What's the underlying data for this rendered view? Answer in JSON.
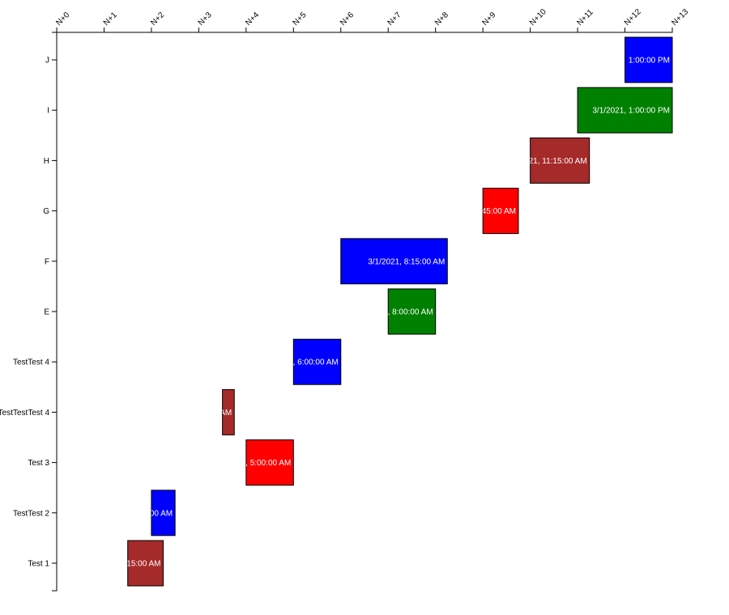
{
  "chart_data": {
    "type": "gantt",
    "x_ticks": [
      "N+0",
      "N+1",
      "N+2",
      "N+3",
      "N+4",
      "N+5",
      "N+6",
      "N+7",
      "N+8",
      "N+9",
      "N+10",
      "N+11",
      "N+12",
      "N+13"
    ],
    "xlim": [
      0,
      13
    ],
    "categories": [
      "Test 1",
      "TestTest 2",
      "Test 3",
      "TestTestTest 4",
      "TestTest 4",
      "E",
      "F",
      "G",
      "H",
      "I",
      "J"
    ],
    "tasks": [
      {
        "category": "Test 1",
        "start": 1.5,
        "end": 2.25,
        "label": "15:00 AM",
        "color": "#a52a2a"
      },
      {
        "category": "TestTest 2",
        "start": 2.0,
        "end": 2.5,
        "label": "00 AM",
        "color": "#0000ff"
      },
      {
        "category": "Test 3",
        "start": 4.0,
        "end": 5.0,
        "label": ", 5:00:00 AM",
        "color": "#ff0000"
      },
      {
        "category": "TestTestTest 4",
        "start": 3.5,
        "end": 3.75,
        "label": "AM",
        "color": "#a52a2a"
      },
      {
        "category": "TestTest 4",
        "start": 5.0,
        "end": 6.0,
        "label": ", 6:00:00 AM",
        "color": "#0000ff"
      },
      {
        "category": "E",
        "start": 7.0,
        "end": 8.0,
        "label": ", 8:00:00 AM",
        "color": "#008000"
      },
      {
        "category": "F",
        "start": 6.0,
        "end": 8.25,
        "label": "3/1/2021, 8:15:00 AM",
        "color": "#0000ff"
      },
      {
        "category": "G",
        "start": 9.0,
        "end": 9.75,
        "label": "45:00 AM",
        "color": "#ff0000"
      },
      {
        "category": "H",
        "start": 10.0,
        "end": 11.25,
        "label": "21, 11:15:00 AM",
        "color": "#a52a2a"
      },
      {
        "category": "I",
        "start": 11.0,
        "end": 13.0,
        "label": "3/1/2021, 1:00:00 PM",
        "color": "#008000"
      },
      {
        "category": "J",
        "start": 12.0,
        "end": 13.0,
        "label": "1:00:00 PM",
        "color": "#0000ff"
      }
    ]
  }
}
